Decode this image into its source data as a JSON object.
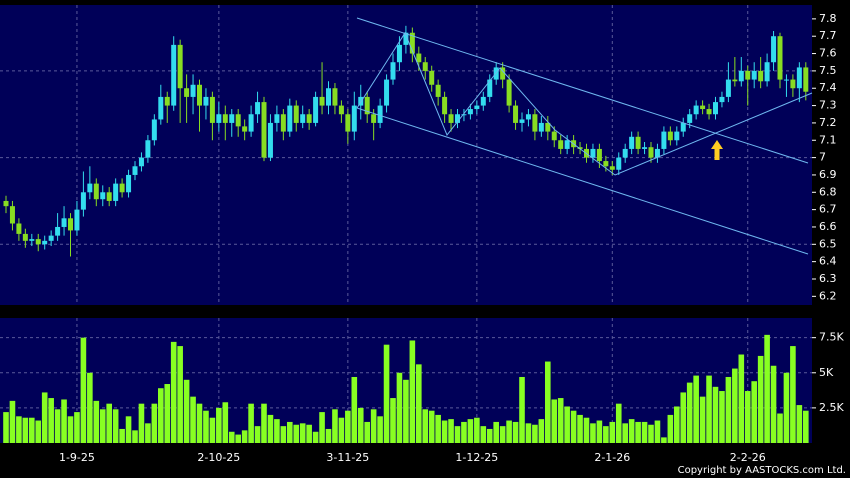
{
  "chart_data": [
    {
      "type": "candlestick",
      "up_color": "#33ddee",
      "down_color": "#88dd22",
      "ylim": [
        6.15,
        7.88
      ],
      "yticks": [
        6.2,
        6.3,
        6.4,
        6.5,
        6.6,
        6.7,
        6.8,
        6.9,
        7,
        7.1,
        7.2,
        7.3,
        7.4,
        7.5,
        7.6,
        7.7,
        7.8
      ],
      "categories": [
        null,
        null,
        null,
        null,
        null,
        null,
        null,
        null,
        null,
        null,
        null,
        "1-9-25",
        null,
        null,
        null,
        null,
        null,
        null,
        null,
        null,
        null,
        null,
        null,
        null,
        null,
        null,
        null,
        null,
        null,
        null,
        null,
        null,
        null,
        "2-10-25",
        null,
        null,
        null,
        null,
        null,
        null,
        null,
        null,
        null,
        null,
        null,
        null,
        null,
        null,
        null,
        null,
        null,
        null,
        null,
        "3-11-25",
        null,
        null,
        null,
        null,
        null,
        null,
        null,
        null,
        null,
        null,
        null,
        null,
        null,
        null,
        null,
        null,
        null,
        null,
        null,
        "1-12-25",
        null,
        null,
        null,
        null,
        null,
        null,
        null,
        null,
        null,
        null,
        null,
        null,
        null,
        null,
        null,
        null,
        null,
        null,
        null,
        null,
        "2-1-26",
        null,
        null,
        null,
        null,
        null,
        null,
        null,
        null,
        null,
        null,
        null,
        null,
        null,
        null,
        null,
        null,
        null,
        null,
        null,
        null,
        "2-2-26",
        null,
        null,
        null,
        null,
        null,
        null,
        null,
        null,
        null
      ],
      "ohlc": [
        [
          6.75,
          6.78,
          6.68,
          6.72
        ],
        [
          6.72,
          6.75,
          6.58,
          6.62
        ],
        [
          6.62,
          6.65,
          6.52,
          6.56
        ],
        [
          6.56,
          6.59,
          6.48,
          6.52
        ],
        [
          6.52,
          6.56,
          6.49,
          6.53
        ],
        [
          6.53,
          6.56,
          6.46,
          6.5
        ],
        [
          6.5,
          6.55,
          6.47,
          6.52
        ],
        [
          6.52,
          6.58,
          6.49,
          6.55
        ],
        [
          6.55,
          6.68,
          6.52,
          6.6
        ],
        [
          6.6,
          6.72,
          6.55,
          6.65
        ],
        [
          6.65,
          6.68,
          6.43,
          6.58
        ],
        [
          6.58,
          6.75,
          6.55,
          6.7
        ],
        [
          6.7,
          6.92,
          6.66,
          6.8
        ],
        [
          6.8,
          6.95,
          6.76,
          6.85
        ],
        [
          6.85,
          6.88,
          6.72,
          6.76
        ],
        [
          6.76,
          6.84,
          6.72,
          6.8
        ],
        [
          6.8,
          6.83,
          6.72,
          6.75
        ],
        [
          6.75,
          6.88,
          6.72,
          6.85
        ],
        [
          6.85,
          6.88,
          6.77,
          6.8
        ],
        [
          6.8,
          6.93,
          6.77,
          6.9
        ],
        [
          6.9,
          6.98,
          6.87,
          6.95
        ],
        [
          6.95,
          7.03,
          6.92,
          7.0
        ],
        [
          7.0,
          7.13,
          6.97,
          7.1
        ],
        [
          7.1,
          7.25,
          7.07,
          7.22
        ],
        [
          7.22,
          7.42,
          7.19,
          7.35
        ],
        [
          7.35,
          7.38,
          7.2,
          7.3
        ],
        [
          7.3,
          7.7,
          7.27,
          7.65
        ],
        [
          7.65,
          7.68,
          7.2,
          7.4
        ],
        [
          7.4,
          7.48,
          7.2,
          7.35
        ],
        [
          7.35,
          7.48,
          7.25,
          7.42
        ],
        [
          7.42,
          7.45,
          7.15,
          7.3
        ],
        [
          7.3,
          7.4,
          7.22,
          7.35
        ],
        [
          7.35,
          7.38,
          7.1,
          7.2
        ],
        [
          7.2,
          7.32,
          7.15,
          7.25
        ],
        [
          7.25,
          7.3,
          7.1,
          7.2
        ],
        [
          7.2,
          7.28,
          7.12,
          7.25
        ],
        [
          7.25,
          7.28,
          7.12,
          7.18
        ],
        [
          7.18,
          7.22,
          7.1,
          7.15
        ],
        [
          7.15,
          7.3,
          7.12,
          7.25
        ],
        [
          7.25,
          7.38,
          7.2,
          7.32
        ],
        [
          7.32,
          7.35,
          6.98,
          7.0
        ],
        [
          7.0,
          7.25,
          6.98,
          7.2
        ],
        [
          7.2,
          7.3,
          7.15,
          7.25
        ],
        [
          7.25,
          7.28,
          7.1,
          7.15
        ],
        [
          7.15,
          7.34,
          7.12,
          7.3
        ],
        [
          7.3,
          7.33,
          7.15,
          7.2
        ],
        [
          7.2,
          7.3,
          7.17,
          7.25
        ],
        [
          7.25,
          7.28,
          7.16,
          7.2
        ],
        [
          7.2,
          7.38,
          7.18,
          7.35
        ],
        [
          7.35,
          7.55,
          7.25,
          7.3
        ],
        [
          7.3,
          7.44,
          7.25,
          7.4
        ],
        [
          7.4,
          7.43,
          7.25,
          7.3
        ],
        [
          7.3,
          7.33,
          7.2,
          7.25
        ],
        [
          7.25,
          7.28,
          7.08,
          7.15
        ],
        [
          7.15,
          7.38,
          7.1,
          7.3
        ],
        [
          7.3,
          7.42,
          7.22,
          7.35
        ],
        [
          7.35,
          7.38,
          7.2,
          7.25
        ],
        [
          7.25,
          7.28,
          7.1,
          7.2
        ],
        [
          7.2,
          7.34,
          7.17,
          7.3
        ],
        [
          7.3,
          7.48,
          7.26,
          7.45
        ],
        [
          7.45,
          7.6,
          7.42,
          7.55
        ],
        [
          7.55,
          7.7,
          7.5,
          7.65
        ],
        [
          7.65,
          7.76,
          7.6,
          7.72
        ],
        [
          7.72,
          7.75,
          7.55,
          7.6
        ],
        [
          7.6,
          7.64,
          7.5,
          7.55
        ],
        [
          7.55,
          7.58,
          7.45,
          7.5
        ],
        [
          7.5,
          7.53,
          7.38,
          7.42
        ],
        [
          7.42,
          7.45,
          7.3,
          7.35
        ],
        [
          7.35,
          7.38,
          7.2,
          7.25
        ],
        [
          7.25,
          7.28,
          7.15,
          7.2
        ],
        [
          7.2,
          7.28,
          7.17,
          7.25
        ],
        [
          7.25,
          7.28,
          7.21,
          7.25
        ],
        [
          7.25,
          7.31,
          7.22,
          7.28
        ],
        [
          7.28,
          7.33,
          7.25,
          7.3
        ],
        [
          7.3,
          7.38,
          7.27,
          7.35
        ],
        [
          7.35,
          7.48,
          7.32,
          7.45
        ],
        [
          7.45,
          7.55,
          7.42,
          7.52
        ],
        [
          7.52,
          7.55,
          7.4,
          7.45
        ],
        [
          7.45,
          7.48,
          7.26,
          7.3
        ],
        [
          7.3,
          7.33,
          7.16,
          7.2
        ],
        [
          7.2,
          7.26,
          7.15,
          7.22
        ],
        [
          7.22,
          7.28,
          7.18,
          7.25
        ],
        [
          7.25,
          7.28,
          7.1,
          7.15
        ],
        [
          7.15,
          7.24,
          7.12,
          7.2
        ],
        [
          7.2,
          7.24,
          7.1,
          7.15
        ],
        [
          7.15,
          7.18,
          7.06,
          7.1
        ],
        [
          7.1,
          7.13,
          7.02,
          7.05
        ],
        [
          7.05,
          7.13,
          7.02,
          7.1
        ],
        [
          7.1,
          7.13,
          7.02,
          7.06
        ],
        [
          7.06,
          7.09,
          7.02,
          7.05
        ],
        [
          7.05,
          7.08,
          6.97,
          7.0
        ],
        [
          7.0,
          7.08,
          6.97,
          7.05
        ],
        [
          7.05,
          7.08,
          6.94,
          6.98
        ],
        [
          6.98,
          7.01,
          6.92,
          6.95
        ],
        [
          6.95,
          6.98,
          6.9,
          6.93
        ],
        [
          6.93,
          7.03,
          6.9,
          7.0
        ],
        [
          7.0,
          7.08,
          6.97,
          7.05
        ],
        [
          7.05,
          7.15,
          7.02,
          7.12
        ],
        [
          7.12,
          7.15,
          7.02,
          7.05
        ],
        [
          7.05,
          7.09,
          7.02,
          7.06
        ],
        [
          7.06,
          7.09,
          6.97,
          7.0
        ],
        [
          7.0,
          7.08,
          6.97,
          7.05
        ],
        [
          7.05,
          7.18,
          7.02,
          7.15
        ],
        [
          7.15,
          7.18,
          7.07,
          7.1
        ],
        [
          7.1,
          7.18,
          7.07,
          7.15
        ],
        [
          7.15,
          7.23,
          7.12,
          7.2
        ],
        [
          7.2,
          7.28,
          7.17,
          7.25
        ],
        [
          7.25,
          7.33,
          7.22,
          7.3
        ],
        [
          7.3,
          7.33,
          7.25,
          7.28
        ],
        [
          7.28,
          7.31,
          7.22,
          7.25
        ],
        [
          7.25,
          7.35,
          7.22,
          7.32
        ],
        [
          7.32,
          7.38,
          7.29,
          7.35
        ],
        [
          7.35,
          7.55,
          7.32,
          7.45
        ],
        [
          7.45,
          7.58,
          7.41,
          7.44
        ],
        [
          7.44,
          7.58,
          7.41,
          7.5
        ],
        [
          7.5,
          7.53,
          7.3,
          7.45
        ],
        [
          7.45,
          7.55,
          7.4,
          7.5
        ],
        [
          7.5,
          7.58,
          7.4,
          7.44
        ],
        [
          7.44,
          7.6,
          7.41,
          7.55
        ],
        [
          7.55,
          7.73,
          7.5,
          7.7
        ],
        [
          7.7,
          7.72,
          7.4,
          7.45
        ],
        [
          7.45,
          7.48,
          7.35,
          7.45
        ],
        [
          7.45,
          7.48,
          7.35,
          7.4
        ],
        [
          7.4,
          7.55,
          7.32,
          7.52
        ],
        [
          7.52,
          7.55,
          7.33,
          7.38
        ]
      ]
    },
    {
      "type": "bar",
      "color": "#88ff22",
      "ylim": [
        0,
        8.9
      ],
      "yticks": [
        {
          "value": 2.5,
          "label": "2.5K"
        },
        {
          "value": 5,
          "label": "5K"
        },
        {
          "value": 7.5,
          "label": "7.5K"
        }
      ],
      "values": [
        2.2,
        3.0,
        1.9,
        1.8,
        1.8,
        1.6,
        3.6,
        3.2,
        2.4,
        3.1,
        1.9,
        2.2,
        7.5,
        5.0,
        3.0,
        2.4,
        2.8,
        2.4,
        1.0,
        1.9,
        0.9,
        2.8,
        1.4,
        2.8,
        3.9,
        4.2,
        7.2,
        6.9,
        4.5,
        3.3,
        2.8,
        2.3,
        1.8,
        2.5,
        2.9,
        0.8,
        0.6,
        0.9,
        2.8,
        1.2,
        2.8,
        2.0,
        1.7,
        1.2,
        1.5,
        1.3,
        1.4,
        1.3,
        0.8,
        2.2,
        1.0,
        2.4,
        1.8,
        2.3,
        4.7,
        2.5,
        1.5,
        2.4,
        1.9,
        7.0,
        3.2,
        5.0,
        4.5,
        7.3,
        5.6,
        2.4,
        2.3,
        2.0,
        1.6,
        1.7,
        1.2,
        1.5,
        1.7,
        1.8,
        1.2,
        1.0,
        1.5,
        1.2,
        1.6,
        1.5,
        4.7,
        1.4,
        1.3,
        1.7,
        5.8,
        3.1,
        3.2,
        2.6,
        2.3,
        2.0,
        1.8,
        1.4,
        1.6,
        1.2,
        1.5,
        2.8,
        1.4,
        1.7,
        1.5,
        1.5,
        1.3,
        1.6,
        0.4,
        2.0,
        2.6,
        3.6,
        4.3,
        4.8,
        3.3,
        4.8,
        4.0,
        3.7,
        4.7,
        5.3,
        6.3,
        3.7,
        4.4,
        6.2,
        7.7,
        5.5,
        2.1,
        5.0,
        6.9,
        2.7,
        2.3
      ]
    }
  ],
  "copyright": "Copyright by AASTOCKS.com Ltd."
}
